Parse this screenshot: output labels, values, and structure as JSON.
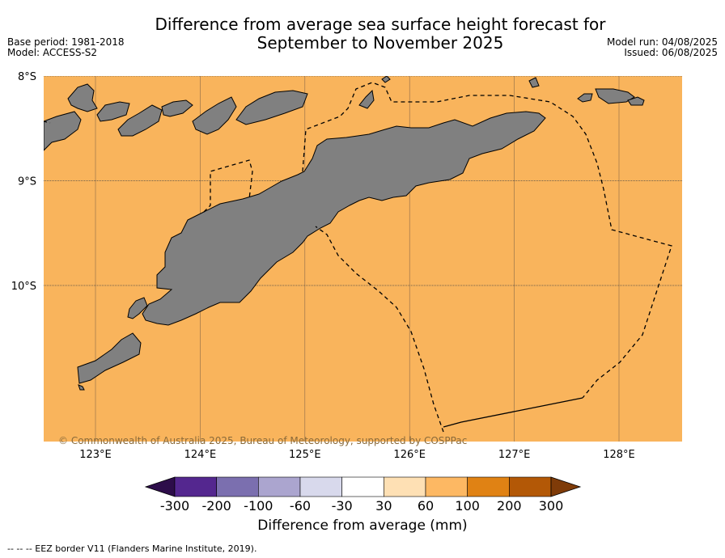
{
  "header": {
    "title_line1": "Difference from average sea surface height forecast for",
    "title_line2": "September to November 2025",
    "base_period": "Base period: 1981-2018",
    "model": "Model: ACCESS-S2",
    "model_run": "Model run: 04/08/2025",
    "issued": "Issued: 06/08/2025"
  },
  "map": {
    "lon_range": [
      122.5,
      128.6
    ],
    "lat_range": [
      -11.5,
      -8.0
    ],
    "latitude_labels": [
      {
        "lat": -8.0,
        "text": "8°S"
      },
      {
        "lat": -9.0,
        "text": "9°S"
      },
      {
        "lat": -10.0,
        "text": "10°S"
      }
    ],
    "longitude_labels": [
      {
        "lon": 123,
        "text": "123°E"
      },
      {
        "lon": 124,
        "text": "124°E"
      },
      {
        "lon": 125,
        "text": "125°E"
      },
      {
        "lon": 126,
        "text": "126°E"
      },
      {
        "lon": 127,
        "text": "127°E"
      },
      {
        "lon": 128,
        "text": "128°E"
      }
    ],
    "ocean_color": "#f9b45c",
    "land_color": "#808080",
    "ocean_value_class": "60 to 100 mm",
    "copyright": "© Commonwealth of Australia 2025, Bureau of Meteorology, supported by COSPPac"
  },
  "colorbar": {
    "title": "Difference from average (mm)",
    "ticks": [
      "-300",
      "-200",
      "-100",
      "-60",
      "-30",
      "30",
      "60",
      "100",
      "200",
      "300"
    ],
    "colors": [
      "#2d0d4a",
      "#54278f",
      "#7b6faf",
      "#aba5cf",
      "#d8d9ec",
      "#ffffff",
      "#fee0b4",
      "#fdb863",
      "#e08214",
      "#b35806",
      "#7f3b08"
    ]
  },
  "legend": {
    "eez_note": "--  --  -- EEZ border V11 (Flanders Marine Institute, 2019)."
  }
}
